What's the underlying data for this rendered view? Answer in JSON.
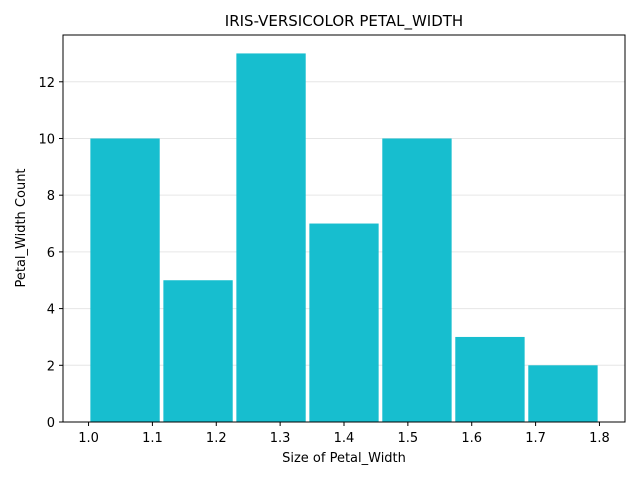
{
  "chart_data": {
    "type": "bar",
    "title": "IRIS-VERSICOLOR PETAL_WIDTH",
    "xlabel": "Size of Petal_Width",
    "ylabel": "Petal_Width Count",
    "bins": [
      {
        "start": 1.0,
        "end": 1.1143,
        "count": 10
      },
      {
        "start": 1.1143,
        "end": 1.2286,
        "count": 5
      },
      {
        "start": 1.2286,
        "end": 1.3429,
        "count": 13
      },
      {
        "start": 1.3429,
        "end": 1.4571,
        "count": 7
      },
      {
        "start": 1.4571,
        "end": 1.5714,
        "count": 10
      },
      {
        "start": 1.5714,
        "end": 1.6857,
        "count": 3
      },
      {
        "start": 1.6857,
        "end": 1.8,
        "count": 2
      }
    ],
    "xlim": [
      0.96,
      1.84
    ],
    "ylim": [
      0,
      13.65
    ],
    "xticks": [
      "1.0",
      "1.1",
      "1.2",
      "1.3",
      "1.4",
      "1.5",
      "1.6",
      "1.7",
      "1.8"
    ],
    "yticks": [
      "0",
      "2",
      "4",
      "6",
      "8",
      "10",
      "12"
    ],
    "bar_color": "#17becf",
    "grid": "y-axis, light"
  }
}
